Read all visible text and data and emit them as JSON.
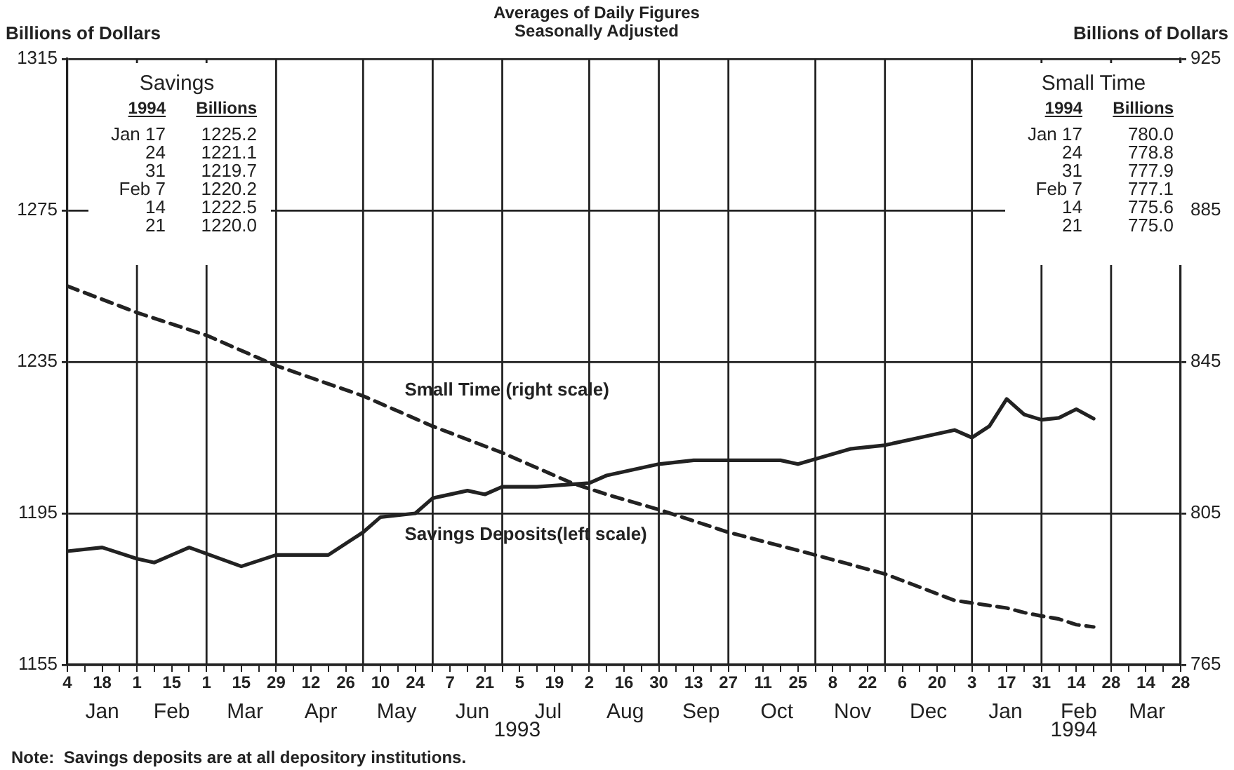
{
  "chart_data": {
    "type": "line",
    "subtitle": "Averages of Daily Figures\nSeasonally Adjusted",
    "ylabel": "Billions of Dollars",
    "y2label": "Billions of Dollars",
    "xlim": [
      "1993-01-04",
      "1994-03-28"
    ],
    "xticks": [
      {
        "value": "1993-01-04",
        "label": "4"
      },
      {
        "value": "1993-01-11",
        "label": null
      },
      {
        "value": "1993-01-18",
        "label": "18"
      },
      {
        "value": "1993-01-25",
        "label": null
      },
      {
        "value": "1993-02-01",
        "label": "1"
      },
      {
        "value": "1993-02-08",
        "label": null
      },
      {
        "value": "1993-02-15",
        "label": "15"
      },
      {
        "value": "1993-02-22",
        "label": null
      },
      {
        "value": "1993-03-01",
        "label": "1"
      },
      {
        "value": "1993-03-08",
        "label": null
      },
      {
        "value": "1993-03-15",
        "label": "15"
      },
      {
        "value": "1993-03-22",
        "label": null
      },
      {
        "value": "1993-03-29",
        "label": "29"
      },
      {
        "value": "1993-04-05",
        "label": null
      },
      {
        "value": "1993-04-12",
        "label": "12"
      },
      {
        "value": "1993-04-19",
        "label": null
      },
      {
        "value": "1993-04-26",
        "label": "26"
      },
      {
        "value": "1993-05-03",
        "label": null
      },
      {
        "value": "1993-05-10",
        "label": "10"
      },
      {
        "value": "1993-05-17",
        "label": null
      },
      {
        "value": "1993-05-24",
        "label": "24"
      },
      {
        "value": "1993-05-31",
        "label": null
      },
      {
        "value": "1993-06-07",
        "label": "7"
      },
      {
        "value": "1993-06-14",
        "label": null
      },
      {
        "value": "1993-06-21",
        "label": "21"
      },
      {
        "value": "1993-06-28",
        "label": null
      },
      {
        "value": "1993-07-05",
        "label": "5"
      },
      {
        "value": "1993-07-12",
        "label": null
      },
      {
        "value": "1993-07-19",
        "label": "19"
      },
      {
        "value": "1993-07-26",
        "label": null
      },
      {
        "value": "1993-08-02",
        "label": "2"
      },
      {
        "value": "1993-08-09",
        "label": null
      },
      {
        "value": "1993-08-16",
        "label": "16"
      },
      {
        "value": "1993-08-23",
        "label": null
      },
      {
        "value": "1993-08-30",
        "label": "30"
      },
      {
        "value": "1993-09-06",
        "label": null
      },
      {
        "value": "1993-09-13",
        "label": "13"
      },
      {
        "value": "1993-09-20",
        "label": null
      },
      {
        "value": "1993-09-27",
        "label": "27"
      },
      {
        "value": "1993-10-04",
        "label": null
      },
      {
        "value": "1993-10-11",
        "label": "11"
      },
      {
        "value": "1993-10-18",
        "label": null
      },
      {
        "value": "1993-10-25",
        "label": "25"
      },
      {
        "value": "1993-11-01",
        "label": null
      },
      {
        "value": "1993-11-08",
        "label": "8"
      },
      {
        "value": "1993-11-15",
        "label": null
      },
      {
        "value": "1993-11-22",
        "label": "22"
      },
      {
        "value": "1993-11-29",
        "label": null
      },
      {
        "value": "1993-12-06",
        "label": "6"
      },
      {
        "value": "1993-12-13",
        "label": null
      },
      {
        "value": "1993-12-20",
        "label": "20"
      },
      {
        "value": "1993-12-27",
        "label": null
      },
      {
        "value": "1994-01-03",
        "label": "3"
      },
      {
        "value": "1994-01-10",
        "label": null
      },
      {
        "value": "1994-01-17",
        "label": "17"
      },
      {
        "value": "1994-01-24",
        "label": null
      },
      {
        "value": "1994-01-31",
        "label": "31"
      },
      {
        "value": "1994-02-07",
        "label": null
      },
      {
        "value": "1994-02-14",
        "label": "14"
      },
      {
        "value": "1994-02-21",
        "label": null
      },
      {
        "value": "1994-02-28",
        "label": "28"
      },
      {
        "value": "1994-03-07",
        "label": null
      },
      {
        "value": "1994-03-14",
        "label": "14"
      },
      {
        "value": "1994-03-21",
        "label": null
      },
      {
        "value": "1994-03-28",
        "label": "28"
      }
    ],
    "ylim": [
      1155,
      1315
    ],
    "yticks": [
      1155,
      1195,
      1235,
      1275,
      1315
    ],
    "y2lim": [
      765,
      925
    ],
    "y2ticks": [
      765,
      805,
      845,
      885,
      925
    ],
    "grid": "y",
    "series": [
      {
        "name": "Savings Deposits(left scale)",
        "color": "#222222",
        "line_style": "solid",
        "x": [
          "1993-01-04",
          "1993-01-18",
          "1993-02-01",
          "1993-02-08",
          "1993-02-22",
          "1993-03-15",
          "1993-03-29",
          "1993-04-19",
          "1993-05-03",
          "1993-05-10",
          "1993-05-24",
          "1993-05-31",
          "1993-06-14",
          "1993-06-21",
          "1993-06-28",
          "1993-07-12",
          "1993-08-02",
          "1993-08-09",
          "1993-08-30",
          "1993-09-13",
          "1993-10-04",
          "1993-10-18",
          "1993-10-25",
          "1993-11-15",
          "1993-11-29",
          "1993-12-13",
          "1993-12-27",
          "1994-01-03",
          "1994-01-10",
          "1994-01-17",
          "1994-01-24",
          "1994-01-31",
          "1994-02-07",
          "1994-02-14",
          "1994-02-21"
        ],
        "values": [
          1185,
          1186,
          1183,
          1182,
          1186,
          1181,
          1184,
          1184,
          1190,
          1194,
          1195,
          1199,
          1201,
          1200,
          1202,
          1202,
          1203,
          1205,
          1208,
          1209,
          1209,
          1209,
          1208,
          1212,
          1213,
          1215,
          1217,
          1215,
          1218,
          1225.2,
          1221.1,
          1219.7,
          1220.2,
          1222.5,
          1220.0
        ]
      },
      {
        "name": "Small Time (right scale)",
        "color": "#222222",
        "line_style": "dashed",
        "axis": "y2",
        "x": [
          "1993-01-04",
          "1993-02-01",
          "1993-03-01",
          "1993-03-29",
          "1993-05-03",
          "1993-05-31",
          "1993-06-28",
          "1993-07-26",
          "1993-08-09",
          "1993-08-30",
          "1993-09-27",
          "1993-11-01",
          "1993-11-29",
          "1993-12-27",
          "1994-01-17",
          "1994-01-24",
          "1994-01-31",
          "1994-02-07",
          "1994-02-14",
          "1994-02-21"
        ],
        "values": [
          865,
          858,
          852,
          844,
          836,
          828,
          821,
          813,
          810,
          806,
          800,
          794,
          789,
          782,
          780.0,
          778.8,
          777.9,
          777.1,
          775.6,
          775.0
        ]
      }
    ],
    "ref_lines": [
      {
        "axis": "x",
        "value": "1993-02-01",
        "color": "#222222"
      },
      {
        "axis": "x",
        "value": "1993-03-01",
        "color": "#222222"
      },
      {
        "axis": "x",
        "value": "1993-03-29",
        "color": "#222222"
      },
      {
        "axis": "x",
        "value": "1993-05-03",
        "color": "#222222"
      },
      {
        "axis": "x",
        "value": "1993-05-31",
        "color": "#222222"
      },
      {
        "axis": "x",
        "value": "1993-06-28",
        "color": "#222222"
      },
      {
        "axis": "x",
        "value": "1993-08-02",
        "color": "#222222"
      },
      {
        "axis": "x",
        "value": "1993-08-30",
        "color": "#222222"
      },
      {
        "axis": "x",
        "value": "1993-09-27",
        "color": "#222222"
      },
      {
        "axis": "x",
        "value": "1993-11-01",
        "color": "#222222"
      },
      {
        "axis": "x",
        "value": "1993-11-29",
        "color": "#222222"
      },
      {
        "axis": "x",
        "value": "1994-01-03",
        "color": "#222222"
      },
      {
        "axis": "x",
        "value": "1994-01-31",
        "color": "#222222"
      },
      {
        "axis": "x",
        "value": "1994-02-28",
        "color": "#222222"
      }
    ],
    "annotations": [
      "Savings\n1994  Billions\nJan 17  1225.2\n24  1221.1\n31  1219.7\nFeb 7  1220.2\n14  1222.5\n21  1220.0",
      "Small Time\n1994  Billions\nJan 17  780.0\n24  778.8\n31  777.9\nFeb 7  777.1\n14  775.6\n21  775.0",
      "Note:  Savings deposits are at all depository institutions.",
      "Jan",
      "Feb",
      "Mar",
      "Apr",
      "May",
      "Jun",
      "Jul",
      "Aug",
      "Sep",
      "Oct",
      "Nov",
      "Dec",
      "Jan",
      "Feb",
      "Mar",
      "1993",
      "1994"
    ]
  }
}
